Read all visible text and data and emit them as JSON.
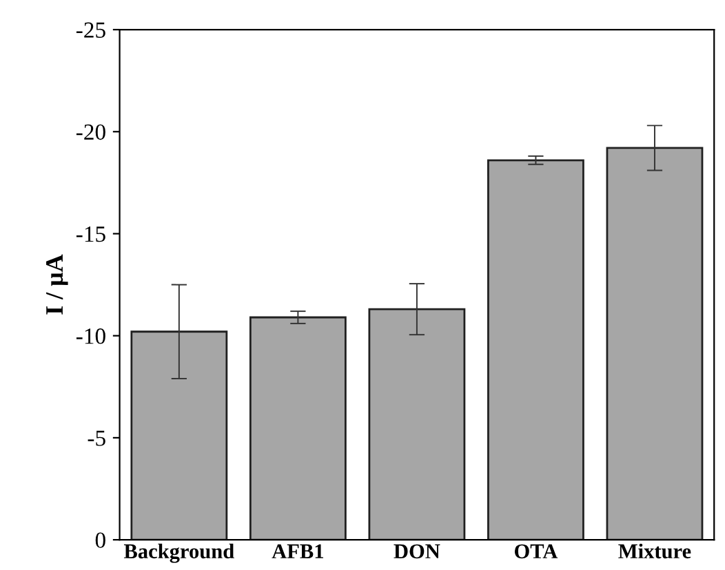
{
  "chart_data": {
    "type": "bar",
    "ylabel": "I / μA",
    "categories": [
      "Background",
      "AFB1",
      "DON",
      "OTA",
      "Mixture"
    ],
    "values": [
      -10.2,
      -10.9,
      -11.3,
      -18.6,
      -19.2
    ],
    "errors": [
      2.3,
      0.3,
      1.25,
      0.2,
      1.1
    ],
    "color": "#a6a6a6",
    "ylim": [
      0,
      -25
    ],
    "yticks": [
      0,
      -5,
      -10,
      -15,
      -20,
      -25
    ],
    "grid": false,
    "legend": false
  }
}
